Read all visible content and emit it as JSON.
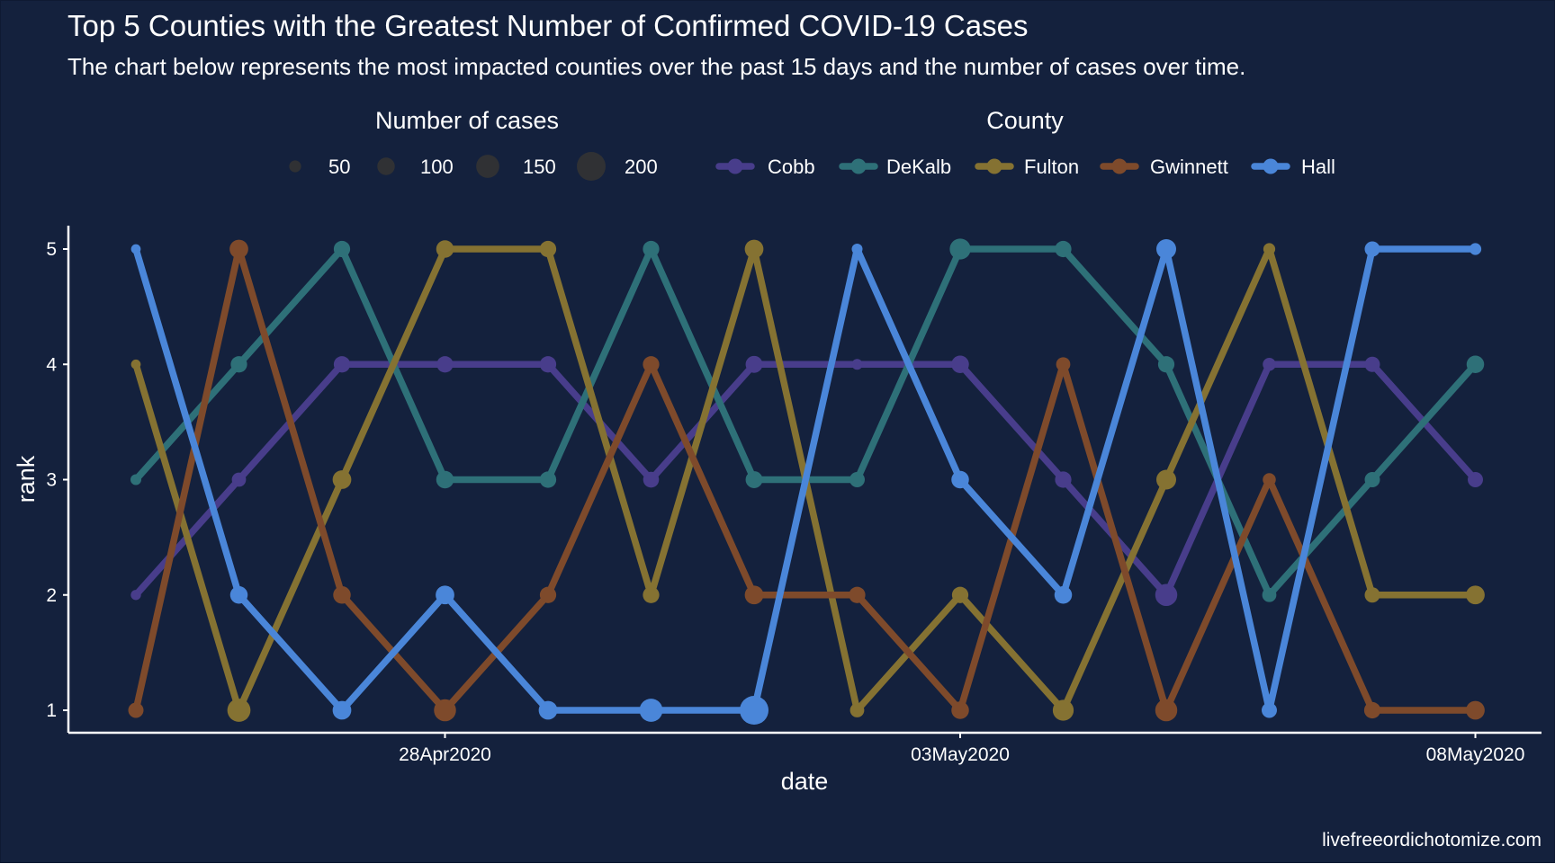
{
  "chart_data": {
    "type": "line",
    "title": "Top 5 Counties with the Greatest Number of Confirmed COVID-19 Cases",
    "subtitle": "The chart below represents the most impacted counties over the past 15 days and the number of cases over time.",
    "xlabel": "date",
    "ylabel": "rank",
    "caption": "livefreeordichotomize.com",
    "x": [
      "25Apr2020",
      "26Apr2020",
      "27Apr2020",
      "28Apr2020",
      "29Apr2020",
      "30Apr2020",
      "01May2020",
      "02May2020",
      "03May2020",
      "04May2020",
      "05May2020",
      "06May2020",
      "07May2020",
      "08May2020"
    ],
    "x_ticks": [
      "28Apr2020",
      "03May2020",
      "08May2020"
    ],
    "y_ticks": [
      1,
      2,
      3,
      4,
      5
    ],
    "ylim": [
      1,
      5
    ],
    "size_legend": {
      "title": "Number of cases",
      "values": [
        50,
        100,
        150,
        200
      ]
    },
    "color_legend": {
      "title": "County"
    },
    "series": [
      {
        "name": "Cobb",
        "color": "#483d8b",
        "values": [
          2,
          3,
          4,
          4,
          4,
          3,
          4,
          4,
          4,
          3,
          2,
          4,
          4,
          3
        ],
        "cases": [
          35,
          70,
          90,
          90,
          90,
          85,
          95,
          40,
          100,
          90,
          140,
          60,
          80,
          80
        ]
      },
      {
        "name": "DeKalb",
        "color": "#2e7078",
        "values": [
          3,
          4,
          5,
          3,
          3,
          5,
          3,
          3,
          5,
          5,
          4,
          2,
          3,
          4
        ],
        "cases": [
          40,
          90,
          90,
          100,
          90,
          90,
          95,
          80,
          130,
          90,
          90,
          70,
          80,
          100
        ]
      },
      {
        "name": "Fulton",
        "color": "#857232",
        "values": [
          4,
          1,
          3,
          5,
          5,
          2,
          5,
          1,
          2,
          1,
          3,
          5,
          2,
          2
        ],
        "cases": [
          30,
          150,
          110,
          100,
          90,
          90,
          110,
          70,
          90,
          130,
          120,
          50,
          80,
          110
        ]
      },
      {
        "name": "Gwinnett",
        "color": "#7e4a2b",
        "values": [
          1,
          5,
          2,
          1,
          2,
          4,
          2,
          2,
          1,
          4,
          1,
          3,
          1,
          1
        ],
        "cases": [
          80,
          110,
          100,
          140,
          90,
          90,
          110,
          90,
          100,
          70,
          140,
          60,
          90,
          110
        ]
      },
      {
        "name": "Hall",
        "color": "#4a86d9",
        "values": [
          5,
          2,
          1,
          2,
          1,
          1,
          1,
          5,
          3,
          2,
          5,
          1,
          5,
          5
        ],
        "cases": [
          30,
          100,
          110,
          110,
          110,
          150,
          200,
          40,
          100,
          100,
          120,
          80,
          80,
          50
        ]
      }
    ]
  }
}
